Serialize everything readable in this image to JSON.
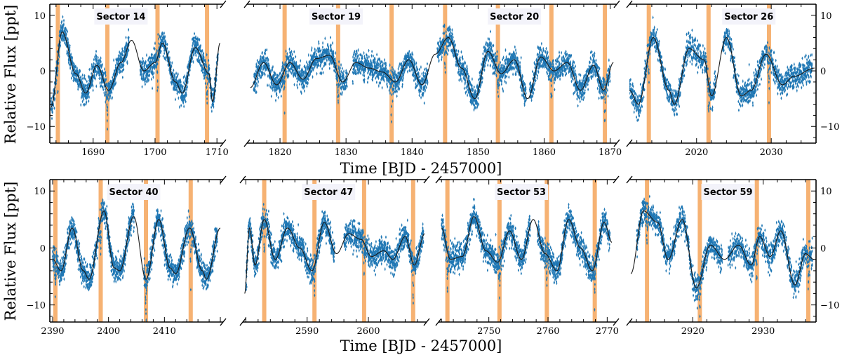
{
  "figure": {
    "colors": {
      "data": "#1f77b4",
      "model": "#1a1a1a",
      "transit_band": "#f5a55a",
      "label_box": "#f3f3fa"
    },
    "ylabel": "Relative Flux [ppt]",
    "xlabel": "Time [BJD - 2457000]"
  },
  "chart_data": [
    {
      "type": "scatter",
      "row": 1,
      "title": "",
      "xlabel": "Time [BJD - 2457000]",
      "ylabel": "Relative Flux [ppt]",
      "ylim": [
        -13,
        12
      ],
      "yticks": [
        -10,
        0,
        10
      ],
      "grid": false,
      "legend": "none",
      "panels": [
        {
          "xlim": [
            1683,
            1711
          ],
          "xticks": [
            1690,
            1700,
            1710
          ],
          "sectors": [
            {
              "name": "Sector 14",
              "x": 1694.5
            }
          ],
          "data_range": [
            1683.2,
            1710.2
          ],
          "gaps": [
            [
              1695.8,
              1697.6
            ]
          ],
          "model_range": [
            1683.2,
            1710.5
          ],
          "transits": [
            1684.3,
            1692.3,
            1700.4,
            1708.4
          ],
          "model_points": [
            [
              1683.2,
              -6.5
            ],
            [
              1685.0,
              7.0
            ],
            [
              1687.2,
              -0.5
            ],
            [
              1688.8,
              -4.0
            ],
            [
              1690.6,
              1.0
            ],
            [
              1692.5,
              -3.5
            ],
            [
              1694.5,
              1.5
            ],
            [
              1696.2,
              5.5
            ],
            [
              1698.2,
              0.0
            ],
            [
              1700.0,
              1.5
            ],
            [
              1701.2,
              5.0
            ],
            [
              1703.3,
              -2.0
            ],
            [
              1704.4,
              -4.0
            ],
            [
              1706.5,
              4.2
            ],
            [
              1708.7,
              -0.5
            ],
            [
              1709.3,
              -5.5
            ],
            [
              1710.5,
              5.0
            ]
          ]
        },
        {
          "xlim": [
            1815,
            1871
          ],
          "xticks": [
            1820,
            1830,
            1840,
            1850,
            1860,
            1870
          ],
          "sectors": [
            {
              "name": "Sector 19",
              "x": 1828.5
            },
            {
              "name": "Sector 20",
              "x": 1855.5
            }
          ],
          "data_range": [
            1816.0,
            1870.0
          ],
          "gaps": [
            [
              1830.2,
              1831.0
            ],
            [
              1842.4,
              1843.8
            ],
            [
              1857.3,
              1857.8
            ]
          ],
          "model_range": [
            1815.5,
            1870.5
          ],
          "transits": [
            1820.7,
            1828.8,
            1836.9,
            1845.0,
            1853.0,
            1861.1,
            1869.2
          ],
          "model_points": [
            [
              1815.5,
              -3.0
            ],
            [
              1817.5,
              1.5
            ],
            [
              1819.5,
              -2.5
            ],
            [
              1821.5,
              1.5
            ],
            [
              1823.5,
              -1.5
            ],
            [
              1825.5,
              2.2
            ],
            [
              1827.5,
              2.8
            ],
            [
              1829.5,
              -2.0
            ],
            [
              1831.5,
              1.5
            ],
            [
              1833.5,
              0.5
            ],
            [
              1835.5,
              -0.2
            ],
            [
              1837.5,
              -2.0
            ],
            [
              1839.5,
              2.0
            ],
            [
              1841.5,
              -2.5
            ],
            [
              1843.5,
              3.0
            ],
            [
              1845.5,
              6.0
            ],
            [
              1847.5,
              0.5
            ],
            [
              1849.5,
              -5.0
            ],
            [
              1851.5,
              3.5
            ],
            [
              1853.5,
              -0.5
            ],
            [
              1855.5,
              2.0
            ],
            [
              1857.5,
              -5.0
            ],
            [
              1859.5,
              2.5
            ],
            [
              1861.5,
              0.0
            ],
            [
              1863.5,
              1.5
            ],
            [
              1865.5,
              -3.5
            ],
            [
              1867.5,
              1.0
            ],
            [
              1869.0,
              -3.5
            ],
            [
              1870.5,
              1.5
            ]
          ]
        },
        {
          "xlim": [
            2011,
            2036
          ],
          "xticks": [
            2020,
            2030
          ],
          "sectors": [
            {
              "name": "Sector 26",
              "x": 2027.0
            }
          ],
          "data_range": [
            2011.0,
            2035.5
          ],
          "gaps": [
            [
              2022.6,
              2023.5
            ]
          ],
          "model_range": [
            2011.0,
            2035.8
          ],
          "transits": [
            2013.6,
            2021.6,
            2029.7
          ],
          "model_points": [
            [
              2011.0,
              -3.5
            ],
            [
              2012.2,
              -6.0
            ],
            [
              2014.2,
              6.0
            ],
            [
              2016.3,
              -3.5
            ],
            [
              2017.0,
              -6.0
            ],
            [
              2019.0,
              4.0
            ],
            [
              2021.0,
              2.0
            ],
            [
              2022.0,
              -4.5
            ],
            [
              2024.0,
              6.0
            ],
            [
              2026.0,
              -4.5
            ],
            [
              2027.3,
              -3.5
            ],
            [
              2029.3,
              3.0
            ],
            [
              2031.5,
              -2.5
            ],
            [
              2033.0,
              -1.0
            ],
            [
              2035.8,
              0.5
            ]
          ]
        }
      ]
    },
    {
      "type": "scatter",
      "row": 2,
      "title": "",
      "xlabel": "Time [BJD - 2457000]",
      "ylabel": "Relative Flux [ppt]",
      "ylim": [
        -13,
        12
      ],
      "yticks": [
        -10,
        0,
        10
      ],
      "grid": false,
      "legend": "none",
      "panels": [
        {
          "xlim": [
            2389.5,
            2420.5
          ],
          "xticks": [
            2390,
            2400,
            2410
          ],
          "sectors": [
            {
              "name": "Sector 40",
              "x": 2404.5
            }
          ],
          "data_range": [
            2390.0,
            2419.5
          ],
          "gaps": [
            [
              2404.6,
              2406.3
            ]
          ],
          "model_range": [
            2390.0,
            2420.0
          ],
          "transits": [
            2390.5,
            2398.6,
            2406.7,
            2414.7
          ],
          "model_points": [
            [
              2390.0,
              -2.0
            ],
            [
              2391.5,
              -4.0
            ],
            [
              2393.5,
              3.5
            ],
            [
              2395.5,
              -4.0
            ],
            [
              2396.5,
              -5.5
            ],
            [
              2399.2,
              6.5
            ],
            [
              2401.0,
              -3.5
            ],
            [
              2402.0,
              -4.0
            ],
            [
              2404.5,
              5.5
            ],
            [
              2406.7,
              -5.5
            ],
            [
              2409.0,
              5.0
            ],
            [
              2411.0,
              -3.5
            ],
            [
              2412.0,
              -4.5
            ],
            [
              2414.5,
              3.5
            ],
            [
              2416.8,
              -4.0
            ],
            [
              2417.5,
              -5.5
            ],
            [
              2420.0,
              3.5
            ]
          ]
        },
        {
          "xlim": [
            2579.5,
            2609.5
          ],
          "xticks": [
            2590,
            2600
          ],
          "sectors": [
            {
              "name": "Sector 47",
              "x": 2593.5
            }
          ],
          "data_range": [
            2580.0,
            2609.0
          ],
          "gaps": [
            [
              2594.5,
              2596.0
            ]
          ],
          "model_range": [
            2579.8,
            2609.2
          ],
          "transits": [
            2583.0,
            2591.2,
            2599.3,
            2607.3
          ],
          "model_points": [
            [
              2579.8,
              -8.0
            ],
            [
              2580.6,
              3.5
            ],
            [
              2581.5,
              -3.0
            ],
            [
              2583.0,
              5.0
            ],
            [
              2584.8,
              -2.0
            ],
            [
              2586.8,
              3.5
            ],
            [
              2588.8,
              0.0
            ],
            [
              2590.8,
              -4.0
            ],
            [
              2592.8,
              4.5
            ],
            [
              2594.8,
              -1.0
            ],
            [
              2596.8,
              2.5
            ],
            [
              2598.8,
              1.5
            ],
            [
              2600.5,
              -1.5
            ],
            [
              2602.5,
              -0.5
            ],
            [
              2604.0,
              -2.0
            ],
            [
              2606.0,
              2.0
            ],
            [
              2607.5,
              -3.0
            ],
            [
              2609.2,
              2.5
            ]
          ]
        },
        {
          "xlim": [
            2741.5,
            2771.5
          ],
          "xticks": [
            2750,
            2760,
            2770
          ],
          "sectors": [
            {
              "name": "Sector 53",
              "x": 2755.5
            }
          ],
          "data_range": [
            2742.0,
            2770.5
          ],
          "gaps": [
            [
              2757.0,
              2758.2
            ]
          ],
          "model_range": [
            2742.0,
            2770.8
          ],
          "transits": [
            2743.0,
            2751.8,
            2759.8,
            2767.9
          ],
          "model_points": [
            [
              2742.0,
              3.5
            ],
            [
              2743.5,
              -2.0
            ],
            [
              2745.5,
              -1.5
            ],
            [
              2747.5,
              5.5
            ],
            [
              2749.5,
              -0.5
            ],
            [
              2751.5,
              -2.5
            ],
            [
              2753.5,
              3.0
            ],
            [
              2755.5,
              -2.0
            ],
            [
              2757.5,
              5.0
            ],
            [
              2759.5,
              -1.0
            ],
            [
              2761.5,
              -4.0
            ],
            [
              2763.5,
              5.0
            ],
            [
              2765.5,
              0.0
            ],
            [
              2767.5,
              -4.0
            ],
            [
              2769.5,
              4.5
            ],
            [
              2770.8,
              1.0
            ]
          ]
        },
        {
          "xlim": [
            2911,
            2937.5
          ],
          "xticks": [
            2920,
            2930
          ],
          "sectors": [
            {
              "name": "Sector 59",
              "x": 2925.0
            }
          ],
          "data_range": [
            2912.0,
            2937.0
          ],
          "gaps": [
            [
              2924.2,
              2925.0
            ]
          ],
          "model_range": [
            2911.2,
            2937.2
          ],
          "transits": [
            2913.5,
            2921.0,
            2929.1,
            2936.4
          ],
          "model_points": [
            [
              2911.2,
              -4.5
            ],
            [
              2913.0,
              6.5
            ],
            [
              2915.0,
              4.5
            ],
            [
              2916.5,
              -2.0
            ],
            [
              2918.5,
              5.0
            ],
            [
              2920.5,
              -7.0
            ],
            [
              2922.5,
              0.5
            ],
            [
              2924.5,
              -2.0
            ],
            [
              2926.5,
              0.5
            ],
            [
              2928.3,
              -3.0
            ],
            [
              2929.5,
              2.0
            ],
            [
              2931.0,
              -1.5
            ],
            [
              2932.5,
              3.0
            ],
            [
              2934.5,
              -6.5
            ],
            [
              2936.0,
              -1.0
            ],
            [
              2937.2,
              -2.0
            ]
          ]
        }
      ]
    }
  ]
}
